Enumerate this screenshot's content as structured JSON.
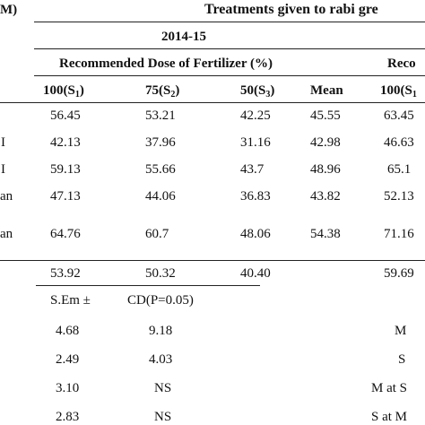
{
  "header": {
    "left_cut": "M)",
    "treatments_title": "Treatments given to rabi gre",
    "year": "2014-15",
    "dose_title": "Recommended Dose of Fertilizer (%)",
    "dose_title_right": "Reco"
  },
  "columns": [
    {
      "main": "100(S",
      "sub": "1",
      "close": ")"
    },
    {
      "main": "75(S",
      "sub": "2",
      "close": ")"
    },
    {
      "main": "50(S",
      "sub": "3",
      "close": ")"
    },
    {
      "main": "Mean",
      "sub": "",
      "close": ""
    },
    {
      "main": "100(S",
      "sub": "1",
      "close": ""
    }
  ],
  "rows": [
    {
      "label": "",
      "cells": [
        "56.45",
        "53.21",
        "42.25",
        "45.55",
        "63.45"
      ]
    },
    {
      "label": "I",
      "cells": [
        "42.13",
        "37.96",
        "31.16",
        "42.98",
        "46.63"
      ]
    },
    {
      "label": "I",
      "cells": [
        "59.13",
        "55.66",
        "43.7",
        "48.96",
        "65.1"
      ]
    },
    {
      "label": "an",
      "cells": [
        "47.13",
        "44.06",
        "36.83",
        "43.82",
        "52.13"
      ]
    },
    {
      "label": "an",
      "cells": [
        "64.76",
        "60.7",
        "48.06",
        "54.38",
        "71.16"
      ]
    }
  ],
  "mean_row": {
    "cells": [
      "53.92",
      "50.32",
      "40.40",
      "59.69"
    ]
  },
  "stats": {
    "sem_label": "S.Em ±",
    "cd_label": "CD(P=0.05)",
    "rows": [
      {
        "sem": "4.68",
        "cd": "9.18",
        "right": "M"
      },
      {
        "sem": "2.49",
        "cd": "4.03",
        "right": "S"
      },
      {
        "sem": "3.10",
        "cd": "NS",
        "right": "M at S"
      },
      {
        "sem": "2.83",
        "cd": "NS",
        "right": "S at M"
      }
    ]
  }
}
